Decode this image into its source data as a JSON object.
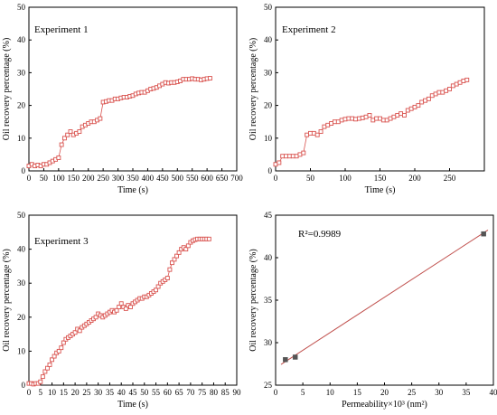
{
  "chart_data": [
    {
      "type": "line",
      "title": "Experiment 1",
      "xlabel": "Time (s)",
      "ylabel": "Oil recovery percentage (%)",
      "xlim": [
        0,
        700
      ],
      "ylim": [
        0,
        50
      ],
      "xticks": [
        "0",
        "50",
        "100",
        "150",
        "200",
        "250",
        "300",
        "350",
        "400",
        "450",
        "500",
        "550",
        "600",
        "650",
        "700"
      ],
      "yticks": [
        "0",
        "10",
        "20",
        "30",
        "40",
        "50"
      ],
      "marker": "square-open",
      "color": "#d9534f",
      "series": [
        {
          "x": [
            0,
            10,
            20,
            30,
            40,
            50,
            60,
            70,
            80,
            90,
            100,
            110,
            120,
            130,
            140,
            150,
            160,
            170,
            180,
            190,
            200,
            210,
            220,
            230,
            240,
            250,
            260,
            270,
            280,
            290,
            300,
            310,
            320,
            330,
            340,
            350,
            360,
            370,
            380,
            390,
            400,
            410,
            420,
            430,
            440,
            450,
            460,
            470,
            480,
            490,
            500,
            510,
            520,
            530,
            540,
            550,
            560,
            570,
            580,
            590,
            600,
            610
          ],
          "y": [
            1.5,
            2.0,
            1.5,
            1.8,
            1.5,
            2.0,
            2.0,
            2.5,
            3.0,
            3.5,
            4.0,
            8.0,
            10.0,
            11.0,
            12.0,
            11.0,
            11.5,
            12.0,
            13.5,
            14.0,
            14.5,
            15.0,
            15.0,
            15.5,
            16.0,
            21.0,
            21.2,
            21.5,
            21.5,
            22.0,
            22.0,
            22.3,
            22.5,
            22.5,
            22.8,
            23.0,
            23.5,
            23.8,
            24.0,
            24.0,
            24.5,
            25.0,
            25.2,
            25.5,
            26.0,
            26.5,
            27.0,
            26.8,
            27.0,
            27.0,
            27.2,
            27.5,
            28.0,
            28.0,
            28.0,
            28.2,
            28.0,
            28.0,
            27.8,
            28.0,
            28.2,
            28.3
          ]
        }
      ]
    },
    {
      "type": "line",
      "title": "Experiment 2",
      "xlabel": "Time (s)",
      "ylabel": "Oil recovery percentage (%)",
      "xlim": [
        0,
        300
      ],
      "ylim": [
        0,
        50
      ],
      "xticks": [
        "0",
        "50",
        "100",
        "150",
        "200",
        "250"
      ],
      "yticks": [
        "0",
        "10",
        "20",
        "30",
        "40",
        "50"
      ],
      "marker": "square-open",
      "color": "#d9534f",
      "series": [
        {
          "x": [
            0,
            5,
            10,
            15,
            20,
            25,
            30,
            35,
            40,
            45,
            50,
            55,
            60,
            65,
            70,
            75,
            80,
            85,
            90,
            95,
            100,
            105,
            110,
            115,
            120,
            125,
            130,
            135,
            140,
            145,
            150,
            155,
            160,
            165,
            170,
            175,
            180,
            185,
            190,
            195,
            200,
            205,
            210,
            215,
            220,
            225,
            230,
            235,
            240,
            245,
            250,
            255,
            260,
            265,
            270,
            275
          ],
          "y": [
            2.0,
            2.5,
            4.5,
            4.5,
            4.5,
            4.5,
            4.5,
            5.0,
            5.5,
            11.0,
            11.5,
            11.5,
            11.0,
            12.0,
            13.5,
            14.0,
            14.5,
            15.0,
            15.0,
            15.5,
            15.8,
            16.0,
            16.0,
            15.8,
            16.0,
            16.2,
            16.5,
            17.0,
            15.5,
            16.0,
            16.0,
            15.5,
            15.5,
            16.0,
            16.5,
            17.0,
            17.5,
            17.0,
            18.5,
            19.0,
            19.5,
            20.0,
            21.0,
            21.5,
            22.0,
            23.0,
            23.5,
            24.0,
            24.0,
            24.5,
            25.0,
            26.0,
            26.5,
            27.0,
            27.5,
            27.8
          ]
        }
      ]
    },
    {
      "type": "line",
      "title": "Experiment 3",
      "xlabel": "Time (s)",
      "ylabel": "Oil recovery percentage (%)",
      "xlim": [
        0,
        90
      ],
      "ylim": [
        0,
        50
      ],
      "xticks": [
        "0",
        "5",
        "10",
        "15",
        "20",
        "25",
        "30",
        "35",
        "40",
        "45",
        "50",
        "55",
        "60",
        "65",
        "70",
        "75",
        "80",
        "85",
        "90"
      ],
      "yticks": [
        "0",
        "10",
        "20",
        "30",
        "40",
        "50"
      ],
      "marker": "square-open",
      "color": "#d9534f",
      "series": [
        {
          "x": [
            0,
            1,
            2,
            3,
            4,
            5,
            6,
            7,
            8,
            9,
            10,
            11,
            12,
            13,
            14,
            15,
            16,
            17,
            18,
            19,
            20,
            21,
            22,
            23,
            24,
            25,
            26,
            27,
            28,
            29,
            30,
            31,
            32,
            33,
            34,
            35,
            36,
            37,
            38,
            39,
            40,
            41,
            42,
            43,
            44,
            45,
            46,
            47,
            48,
            49,
            50,
            51,
            52,
            53,
            54,
            55,
            56,
            57,
            58,
            59,
            60,
            61,
            62,
            63,
            64,
            65,
            66,
            67,
            68,
            69,
            70,
            71,
            72,
            73,
            74,
            75,
            76,
            77,
            78
          ],
          "y": [
            0.5,
            0.5,
            0.3,
            0.5,
            0.5,
            1.0,
            2.5,
            4.0,
            5.0,
            6.0,
            7.5,
            8.5,
            9.5,
            10.0,
            11.0,
            12.5,
            13.5,
            14.0,
            14.5,
            15.0,
            15.5,
            16.5,
            16.0,
            17.0,
            17.5,
            18.0,
            18.5,
            19.0,
            19.5,
            20.0,
            21.0,
            20.5,
            20.0,
            20.5,
            21.0,
            21.5,
            22.0,
            21.5,
            22.0,
            23.0,
            24.0,
            23.0,
            22.5,
            23.5,
            23.0,
            24.0,
            24.5,
            25.0,
            25.5,
            25.5,
            26.0,
            26.0,
            26.5,
            27.0,
            27.5,
            28.0,
            29.0,
            30.0,
            30.5,
            31.0,
            31.5,
            34.0,
            36.0,
            37.0,
            38.0,
            39.0,
            40.0,
            40.5,
            40.0,
            41.0,
            42.0,
            42.5,
            42.8,
            43.0,
            43.0,
            43.0,
            43.0,
            43.0,
            43.0
          ]
        }
      ]
    },
    {
      "type": "scatter",
      "title": "",
      "annotation": "R²=0.9989",
      "xlabel": "Permeability×10³ (nm²)",
      "ylabel": "Oil recovery percentage (%)",
      "xlim": [
        0,
        40
      ],
      "ylim": [
        25,
        45
      ],
      "xticks": [
        "0",
        "5",
        "10",
        "15",
        "20",
        "25",
        "30",
        "35",
        "40"
      ],
      "yticks": [
        "25",
        "30",
        "35",
        "40",
        "45"
      ],
      "marker": "square-filled",
      "marker_color": "#555555",
      "fit_color": "#c0504d",
      "series": [
        {
          "x": [
            1.8,
            3.6,
            38.2
          ],
          "y": [
            28.0,
            28.3,
            42.8
          ]
        }
      ],
      "fit_line": {
        "x": [
          1.0,
          39.0
        ],
        "y": [
          27.44,
          43.25
        ]
      }
    }
  ]
}
